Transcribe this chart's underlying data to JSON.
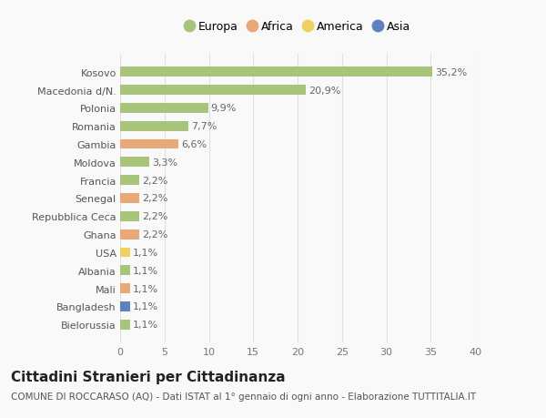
{
  "countries": [
    "Kosovo",
    "Macedonia d/N.",
    "Polonia",
    "Romania",
    "Gambia",
    "Moldova",
    "Francia",
    "Senegal",
    "Repubblica Ceca",
    "Ghana",
    "USA",
    "Albania",
    "Mali",
    "Bangladesh",
    "Bielorussia"
  ],
  "values": [
    35.2,
    20.9,
    9.9,
    7.7,
    6.6,
    3.3,
    2.2,
    2.2,
    2.2,
    2.2,
    1.1,
    1.1,
    1.1,
    1.1,
    1.1
  ],
  "labels": [
    "35,2%",
    "20,9%",
    "9,9%",
    "7,7%",
    "6,6%",
    "3,3%",
    "2,2%",
    "2,2%",
    "2,2%",
    "2,2%",
    "1,1%",
    "1,1%",
    "1,1%",
    "1,1%",
    "1,1%"
  ],
  "continents": [
    "Europa",
    "Europa",
    "Europa",
    "Europa",
    "Africa",
    "Europa",
    "Europa",
    "Africa",
    "Europa",
    "Africa",
    "America",
    "Europa",
    "Africa",
    "Asia",
    "Europa"
  ],
  "continent_colors": {
    "Europa": "#a8c47a",
    "Africa": "#e8a878",
    "America": "#f0d060",
    "Asia": "#6080c0"
  },
  "legend_order": [
    "Europa",
    "Africa",
    "America",
    "Asia"
  ],
  "title": "Cittadini Stranieri per Cittadinanza",
  "subtitle": "COMUNE DI ROCCARASO (AQ) - Dati ISTAT al 1° gennaio di ogni anno - Elaborazione TUTTITALIA.IT",
  "xlim": [
    0,
    40
  ],
  "xticks": [
    0,
    5,
    10,
    15,
    20,
    25,
    30,
    35,
    40
  ],
  "background_color": "#f9f9f9",
  "grid_color": "#e0e0e0",
  "bar_height": 0.55,
  "title_fontsize": 11,
  "subtitle_fontsize": 7.5,
  "label_fontsize": 8,
  "tick_fontsize": 8,
  "legend_fontsize": 9
}
